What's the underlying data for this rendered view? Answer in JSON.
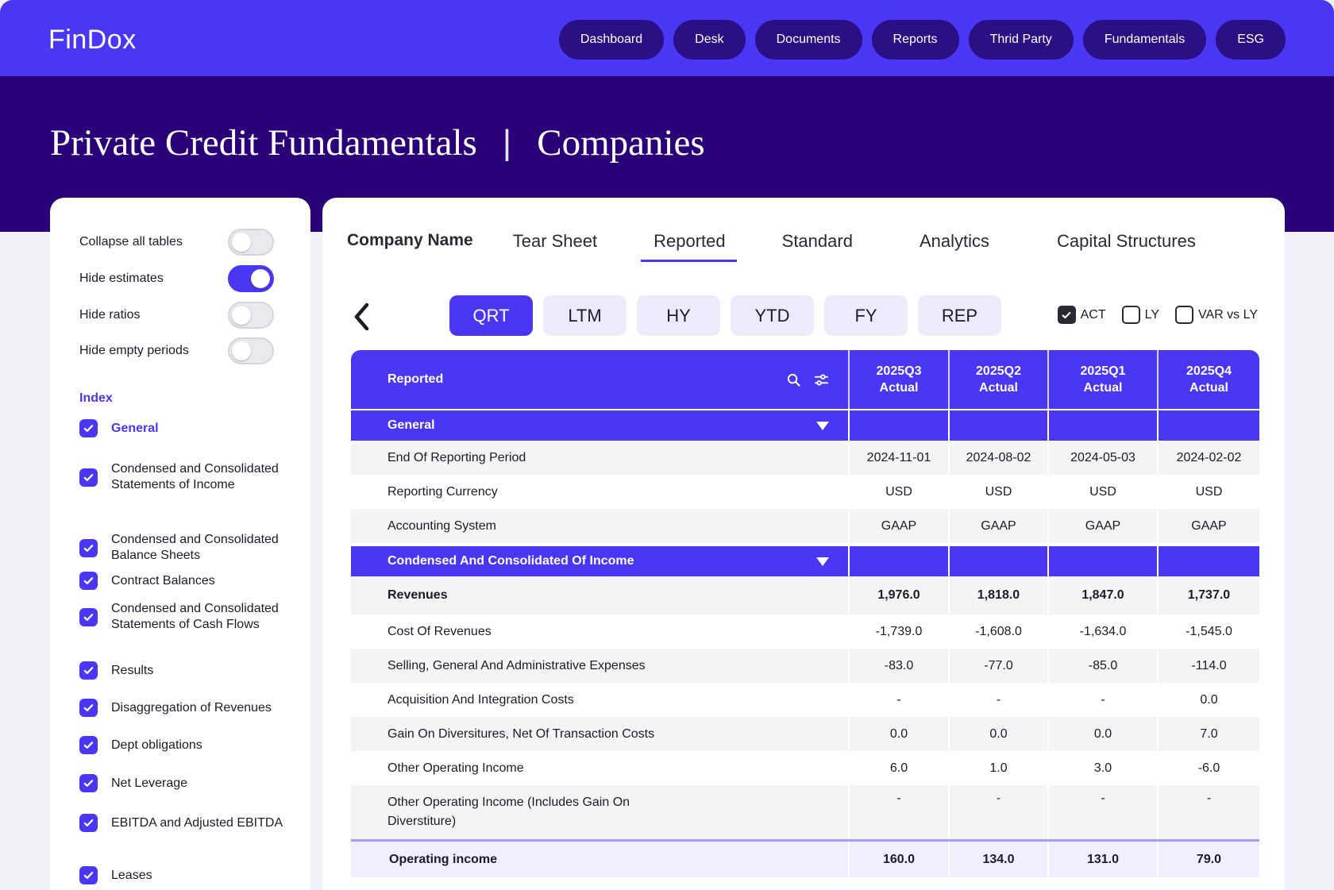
{
  "app": {
    "logo": "FinDox"
  },
  "nav": [
    "Dashboard",
    "Desk",
    "Documents",
    "Reports",
    "Thrid Party",
    "Fundamentals",
    "ESG"
  ],
  "header": {
    "title": "Private Credit Fundamentals",
    "separator": "|",
    "subtitle": "Companies"
  },
  "sidebar": {
    "toggles": [
      {
        "label": "Collapse all tables",
        "on": false
      },
      {
        "label": "Hide estimates",
        "on": true
      },
      {
        "label": "Hide ratios",
        "on": false
      },
      {
        "label": "Hide empty periods",
        "on": false
      }
    ],
    "index_title": "Index",
    "index_items": [
      "General",
      "Condensed and Consolidated Statements of Income",
      "Condensed and Consolidated Balance Sheets",
      "Contract Balances",
      "Condensed and Consolidated Statements of Cash Flows",
      "Results",
      "Disaggregation of Revenues",
      "Dept obligations",
      "Net Leverage",
      "EBITDA and Adjusted EBITDA",
      "Leases"
    ]
  },
  "tabs": [
    "Company Name",
    "Tear Sheet",
    "Reported",
    "Standard",
    "Analytics",
    "Capital Structures"
  ],
  "periods": [
    "QRT",
    "LTM",
    "HY",
    "YTD",
    "FY",
    "REP"
  ],
  "checks": [
    {
      "label": "ACT",
      "checked": true
    },
    {
      "label": "LY",
      "checked": false
    },
    {
      "label": "VAR vs LY",
      "checked": false
    }
  ],
  "table": {
    "title": "Reported",
    "columns": [
      {
        "period": "2025Q3",
        "type": "Actual"
      },
      {
        "period": "2025Q2",
        "type": "Actual"
      },
      {
        "period": "2025Q1",
        "type": "Actual"
      },
      {
        "period": "2025Q4",
        "type": "Actual"
      }
    ],
    "general_section": "General",
    "general_rows": [
      {
        "label": "End Of Reporting Period",
        "values": [
          "2024-11-01",
          "2024-08-02",
          "2024-05-03",
          "2024-02-02"
        ]
      },
      {
        "label": "Reporting Currency",
        "values": [
          "USD",
          "USD",
          "USD",
          "USD"
        ]
      },
      {
        "label": "Accounting System",
        "values": [
          "GAAP",
          "GAAP",
          "GAAP",
          "GAAP"
        ]
      }
    ],
    "income_section": "Condensed And Consolidated Of Income",
    "income_rows": [
      {
        "label": "Revenues",
        "values": [
          "1,976.0",
          "1,818.0",
          "1,847.0",
          "1,737.0"
        ]
      },
      {
        "label": "Cost Of Revenues",
        "values": [
          "-1,739.0",
          "-1,608.0",
          "-1,634.0",
          "-1,545.0"
        ]
      },
      {
        "label": "Selling, General And Administrative Expenses",
        "values": [
          "-83.0",
          "-77.0",
          "-85.0",
          "-114.0"
        ]
      },
      {
        "label": "Acquisition And Integration Costs",
        "values": [
          "-",
          "-",
          "-",
          "0.0"
        ]
      },
      {
        "label": "Gain On Diversitures, Net Of Transaction Costs",
        "values": [
          "0.0",
          "0.0",
          "0.0",
          "7.0"
        ]
      },
      {
        "label": "Other Operating Income",
        "values": [
          "6.0",
          "1.0",
          "3.0",
          "-6.0"
        ]
      },
      {
        "label": "Other Operating Income (Includes Gain On Diverstiture)",
        "values": [
          "-",
          "-",
          "-",
          "-"
        ]
      }
    ],
    "total_row": {
      "label": "Operating income",
      "values": [
        "160.0",
        "134.0",
        "131.0",
        "79.0"
      ]
    }
  },
  "colors": {
    "accent": "#4a36f5",
    "hero": "#290078",
    "nav_pill": "#2a0f85"
  }
}
